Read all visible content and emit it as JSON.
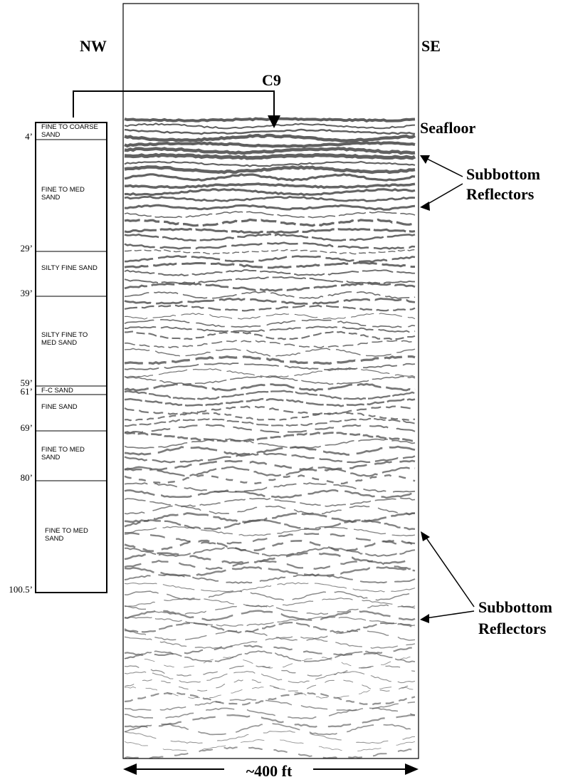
{
  "direction_left": "NW",
  "direction_right": "SE",
  "boring_id": "C9",
  "seafloor_label": "Seafloor",
  "reflectors_upper": [
    "Subbottom",
    "Reflectors"
  ],
  "reflectors_lower": [
    "Subbottom",
    "Reflectors"
  ],
  "scale_label": "~400 ft",
  "boring_log": {
    "depths": [
      "4’",
      "29’",
      "39’",
      "59’",
      "61’",
      "69’",
      "80’",
      "100.5’"
    ],
    "layers": [
      "FINE TO COARSE SAND",
      "FINE TO MED SAND",
      "SILTY FINE SAND",
      "SILTY FINE TO MED SAND",
      "F-C SAND",
      "FINE SAND",
      "FINE TO MED SAND",
      "FINE TO MED SAND"
    ]
  }
}
